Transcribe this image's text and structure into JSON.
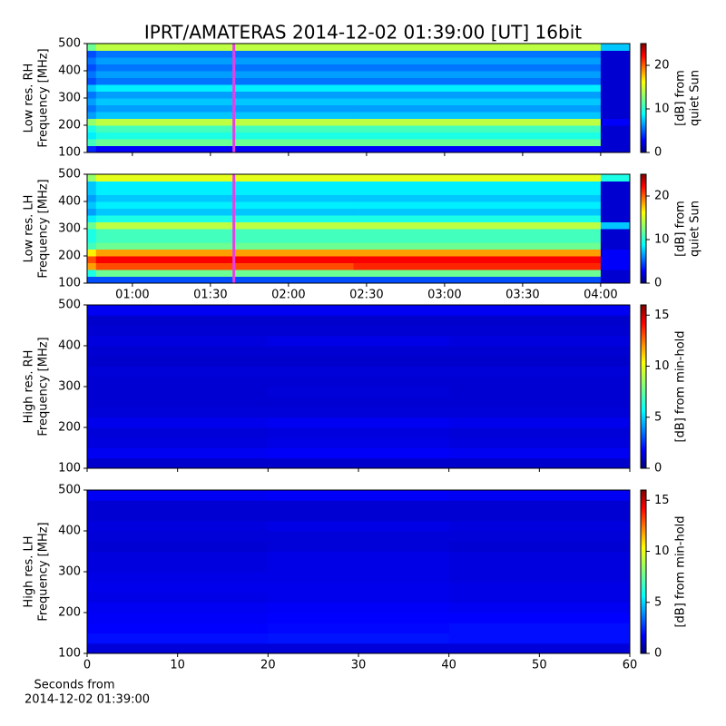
{
  "chart_data": [
    {
      "type": "heatmap",
      "title": "IPRT/AMATERAS 2014-12-02 01:39:00 [UT]   16bit",
      "ylabel": [
        "Low res. RH",
        "Frequency [MHz]"
      ],
      "colorbar_label": [
        "[dB] from",
        "quiet Sun"
      ],
      "ylim": [
        100,
        500
      ],
      "yticks": [
        100,
        200,
        300,
        400,
        500
      ],
      "clim": [
        0,
        25
      ],
      "cticks": [
        0,
        10,
        20
      ],
      "colormap": "jet",
      "marker_x": 99,
      "marker_color": "#e83ee8",
      "time_bins": [
        42.6,
        46,
        145,
        240,
        251.2
      ],
      "freq_bins": [
        100,
        125,
        150,
        175,
        200,
        225,
        250,
        275,
        300,
        325,
        350,
        375,
        400,
        425,
        450,
        475,
        500
      ],
      "z": [
        [
          4,
          3,
          3,
          2
        ],
        [
          11,
          12,
          12,
          2
        ],
        [
          9,
          10,
          10,
          2
        ],
        [
          10,
          11,
          11,
          2
        ],
        [
          13,
          14,
          14,
          3
        ],
        [
          7,
          8,
          8,
          2
        ],
        [
          6,
          7,
          7,
          2
        ],
        [
          7,
          8,
          8,
          2
        ],
        [
          6,
          7,
          7,
          2
        ],
        [
          8,
          9,
          9,
          2
        ],
        [
          5,
          6,
          6,
          2
        ],
        [
          6,
          7,
          7,
          2
        ],
        [
          5,
          6,
          6,
          2
        ],
        [
          6,
          7,
          7,
          2
        ],
        [
          5,
          6,
          6,
          2
        ],
        [
          12,
          14,
          14,
          8
        ]
      ]
    },
    {
      "type": "heatmap",
      "ylabel": [
        "Low res. LH",
        "Frequency [MHz]"
      ],
      "colorbar_label": [
        "[dB] from",
        "quiet Sun"
      ],
      "ylim": [
        100,
        500
      ],
      "yticks": [
        100,
        200,
        300,
        400,
        500
      ],
      "clim": [
        0,
        25
      ],
      "cticks": [
        0,
        10,
        20
      ],
      "colormap": "jet",
      "marker_x": 99,
      "marker_color": "#e83ee8",
      "xlim": [
        42.6,
        251.2
      ],
      "xticks": [
        {
          "value": 60,
          "label": "01:00"
        },
        {
          "value": 90,
          "label": "01:30"
        },
        {
          "value": 120,
          "label": "02:00"
        },
        {
          "value": 150,
          "label": "02:30"
        },
        {
          "value": 180,
          "label": "03:00"
        },
        {
          "value": 210,
          "label": "03:30"
        },
        {
          "value": 240,
          "label": "04:00"
        }
      ],
      "time_bins": [
        42.6,
        46,
        145,
        240,
        251.2
      ],
      "freq_bins": [
        100,
        125,
        150,
        175,
        200,
        225,
        250,
        275,
        300,
        325,
        350,
        375,
        400,
        425,
        450,
        475,
        500
      ],
      "z": [
        [
          5,
          5,
          5,
          2
        ],
        [
          10,
          12,
          12,
          2
        ],
        [
          18,
          20,
          21,
          3
        ],
        [
          20,
          22,
          22,
          3
        ],
        [
          16,
          18,
          18,
          3
        ],
        [
          11,
          12,
          12,
          2
        ],
        [
          10,
          11,
          11,
          2
        ],
        [
          10,
          11,
          11,
          2
        ],
        [
          12,
          14,
          14,
          8
        ],
        [
          9,
          10,
          10,
          2
        ],
        [
          7,
          8,
          8,
          2
        ],
        [
          8,
          9,
          9,
          2
        ],
        [
          7,
          8,
          8,
          2
        ],
        [
          8,
          9,
          9,
          2
        ],
        [
          8,
          9,
          9,
          2
        ],
        [
          13,
          15,
          15,
          10
        ]
      ]
    },
    {
      "type": "heatmap",
      "ylabel": [
        "High res. RH",
        "Frequency [MHz]"
      ],
      "colorbar_label": [
        "[dB] from min-hold"
      ],
      "ylim": [
        100,
        500
      ],
      "yticks": [
        100,
        200,
        300,
        400,
        500
      ],
      "clim": [
        0,
        16
      ],
      "cticks": [
        0,
        5,
        10,
        15
      ],
      "colormap": "jet",
      "time_bins": [
        0,
        20,
        40,
        60
      ],
      "freq_bins": [
        100,
        125,
        150,
        175,
        200,
        225,
        250,
        275,
        300,
        325,
        350,
        375,
        400,
        425,
        450,
        475,
        500
      ],
      "z": [
        [
          1.2,
          1.2,
          1.2
        ],
        [
          1.8,
          1.9,
          1.8
        ],
        [
          1.5,
          1.6,
          1.5
        ],
        [
          1.4,
          1.5,
          1.4
        ],
        [
          1.7,
          1.8,
          1.7
        ],
        [
          1.4,
          1.4,
          1.4
        ],
        [
          1.3,
          1.3,
          1.3
        ],
        [
          1.3,
          1.4,
          1.3
        ],
        [
          1.3,
          1.3,
          1.3
        ],
        [
          1.4,
          1.4,
          1.4
        ],
        [
          1.2,
          1.2,
          1.2
        ],
        [
          1.3,
          1.3,
          1.3
        ],
        [
          1.5,
          1.6,
          1.5
        ],
        [
          1.3,
          1.3,
          1.3
        ],
        [
          1.2,
          1.2,
          1.2
        ],
        [
          1.8,
          1.8,
          1.8
        ]
      ]
    },
    {
      "type": "heatmap",
      "ylabel": [
        "High res. LH",
        "Frequency [MHz]"
      ],
      "colorbar_label": [
        "[dB] from min-hold"
      ],
      "xlabel": [
        "Seconds from",
        "2014-12-02 01:39:00"
      ],
      "ylim": [
        100,
        500
      ],
      "yticks": [
        100,
        200,
        300,
        400,
        500
      ],
      "clim": [
        0,
        16
      ],
      "cticks": [
        0,
        5,
        10,
        15
      ],
      "colormap": "jet",
      "xlim": [
        0,
        60
      ],
      "xticks": [
        0,
        10,
        20,
        30,
        40,
        50,
        60
      ],
      "time_bins": [
        0,
        20,
        40,
        60
      ],
      "freq_bins": [
        100,
        125,
        150,
        175,
        200,
        225,
        250,
        275,
        300,
        325,
        350,
        375,
        400,
        425,
        450,
        475,
        500
      ],
      "z": [
        [
          1.4,
          1.4,
          1.4
        ],
        [
          2.2,
          2.3,
          2.2
        ],
        [
          2.0,
          2.1,
          2.2
        ],
        [
          1.9,
          2.0,
          2.0
        ],
        [
          1.8,
          1.9,
          1.8
        ],
        [
          1.6,
          1.7,
          1.6
        ],
        [
          1.7,
          1.7,
          1.6
        ],
        [
          1.6,
          1.6,
          1.5
        ],
        [
          1.5,
          1.6,
          1.5
        ],
        [
          1.5,
          1.6,
          1.5
        ],
        [
          1.3,
          1.4,
          1.3
        ],
        [
          1.4,
          1.4,
          1.4
        ],
        [
          1.5,
          1.6,
          1.5
        ],
        [
          1.3,
          1.3,
          1.3
        ],
        [
          1.3,
          1.3,
          1.3
        ],
        [
          1.8,
          1.9,
          1.8
        ]
      ]
    }
  ]
}
